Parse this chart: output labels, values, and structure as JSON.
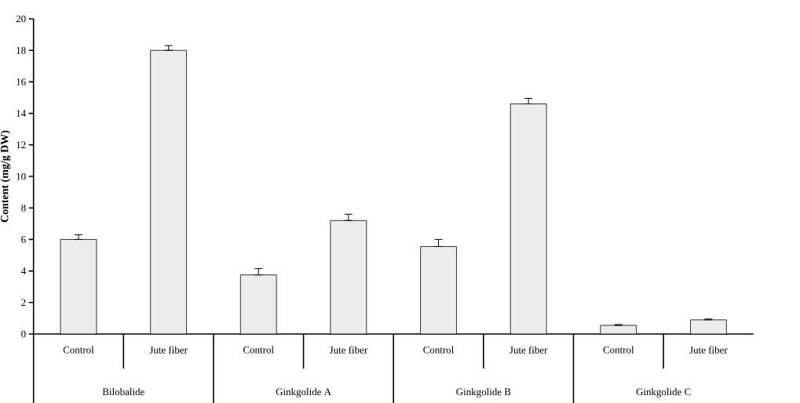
{
  "chart_data": {
    "type": "bar",
    "ylabel": "Content (mg/g DW)",
    "categories": [
      "Control",
      "Jute fiber",
      "Control",
      "Jute fiber",
      "Control",
      "Jute fiber",
      "Control",
      "Jute fiber"
    ],
    "values": [
      6.0,
      18.0,
      3.75,
      7.2,
      5.55,
      14.6,
      0.55,
      0.9
    ],
    "errors": [
      [
        6.0,
        6.3
      ],
      [
        18.0,
        18.3
      ],
      [
        3.75,
        4.15
      ],
      [
        7.2,
        7.6
      ],
      [
        5.55,
        6.0
      ],
      [
        14.6,
        14.95
      ],
      [
        0.55,
        0.6
      ],
      [
        0.9,
        0.95
      ]
    ],
    "color": "#ececec",
    "ylim": [
      0,
      20
    ],
    "yticks": [
      0,
      2,
      4,
      6,
      8,
      10,
      12,
      14,
      16,
      18,
      20
    ],
    "annotations": [
      "Bilobalide",
      "Ginkgolide A",
      "Ginkgolide B",
      "Ginkgolide C"
    ],
    "grid": false
  }
}
